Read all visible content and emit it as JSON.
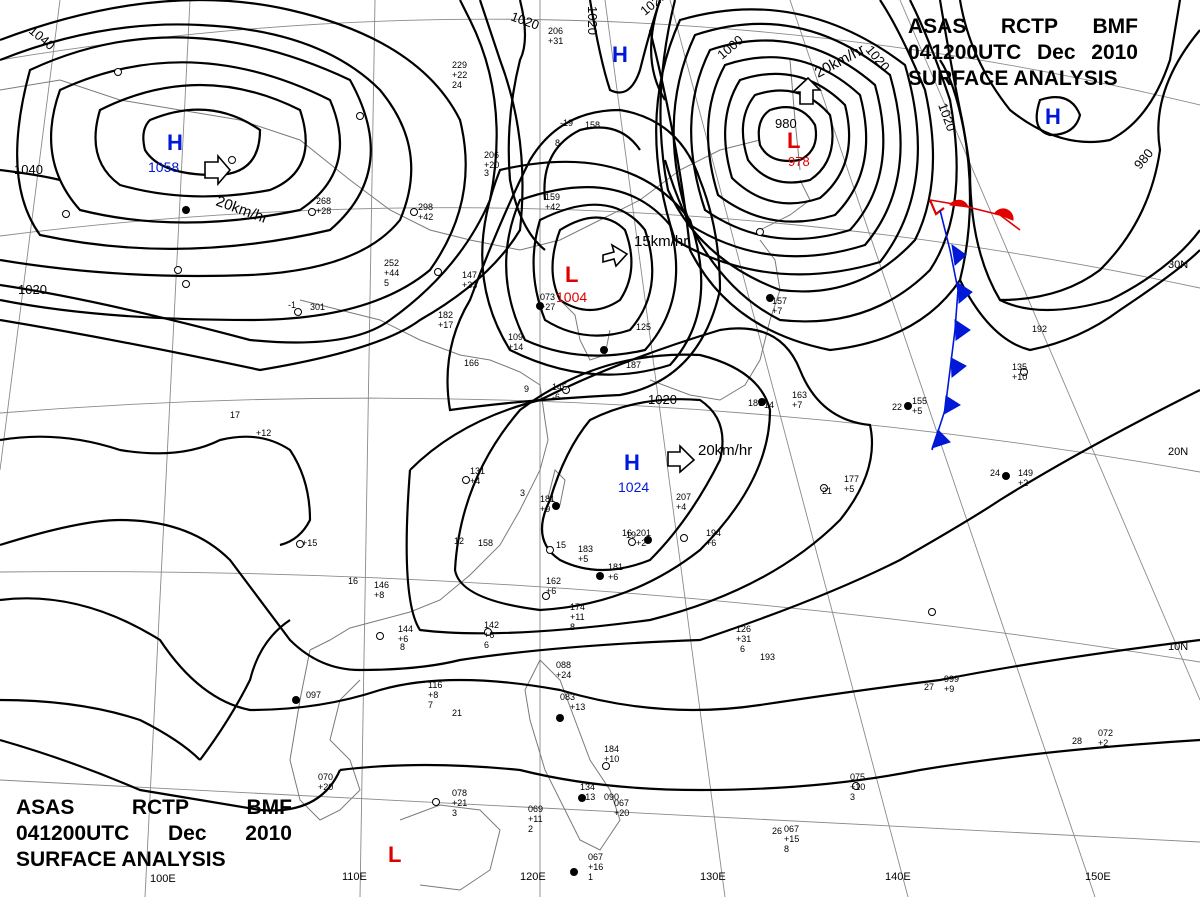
{
  "header": {
    "agency": "ASAS",
    "station": "RCTP",
    "office": "BMF",
    "datetime": "041200UTC",
    "month": "Dec",
    "year": "2010",
    "product": "SURFACE  ANALYSIS"
  },
  "colors": {
    "high": "#0018d8",
    "low": "#e00000",
    "isobar": "#000000",
    "grid": "#8a8a8a",
    "coast": "#7a7a7a",
    "cold_front": "#0018d8",
    "warm_front": "#e00000"
  },
  "pressure_systems": [
    {
      "type": "H",
      "value": "1058",
      "motion": "20km/hr"
    },
    {
      "type": "H",
      "value": "",
      "motion": ""
    },
    {
      "type": "H",
      "value": "",
      "motion": ""
    },
    {
      "type": "L",
      "value": "978",
      "center_isobar": "980",
      "motion": "20km/hr"
    },
    {
      "type": "L",
      "value": "1004",
      "motion": "15km/hr"
    },
    {
      "type": "H",
      "value": "1024",
      "motion": "20km/hr"
    },
    {
      "type": "L",
      "value": "",
      "motion": ""
    }
  ],
  "isobar_labels": [
    "1040",
    "1040",
    "1020",
    "1020",
    "1020",
    "1000",
    "1020",
    "1020",
    "1020",
    "980",
    "1020"
  ],
  "lat_labels": [
    "30N",
    "20N",
    "10N"
  ],
  "lon_labels": [
    "110E",
    "120E",
    "130E",
    "140E",
    "150E",
    "100E"
  ],
  "station_values": [
    "206",
    "+31",
    "229",
    "+22",
    "24",
    "158",
    "8",
    "206",
    "+20",
    "3",
    "-19",
    "159",
    "+42",
    "298",
    "+42",
    "+28",
    "268",
    "252",
    "+44",
    "5",
    "147",
    "+33",
    "182",
    "+17",
    "-1",
    "301",
    "166",
    "109",
    "+14",
    "073",
    "+27",
    "125",
    "187",
    "145",
    "-6",
    "131",
    "+4",
    "181",
    "+9",
    "158",
    "183",
    "+5",
    "181",
    "+6",
    "162",
    "+6",
    "174",
    "+11",
    "8",
    "144",
    "+6",
    "8",
    "142",
    "+6",
    "6",
    "146",
    "+8",
    "116",
    "+8",
    "7",
    "097",
    "088",
    "+24",
    "083",
    "+13",
    "207",
    "+4",
    "194",
    "+6",
    "201",
    "+2",
    "184",
    "+10",
    "134",
    "+13",
    "090",
    "067",
    "+20",
    "078",
    "+21",
    "3",
    "069",
    "+11",
    "2",
    "067",
    "+16",
    "1",
    "126",
    "+31",
    "6",
    "193",
    "177",
    "+5",
    "155",
    "+5",
    "135",
    "+10",
    "192",
    "149",
    "+2",
    "999",
    "+9",
    "075",
    "+10",
    "3",
    "072",
    "+2",
    "067",
    "+15",
    "8",
    "186",
    "14",
    "163",
    "+7",
    "157",
    "+7",
    "070",
    "+20",
    "+12",
    "+15",
    "22",
    "24",
    "27",
    "28",
    "26",
    "21",
    "19",
    "16",
    "15",
    "12",
    "9",
    "3",
    "17",
    "16",
    "21"
  ]
}
